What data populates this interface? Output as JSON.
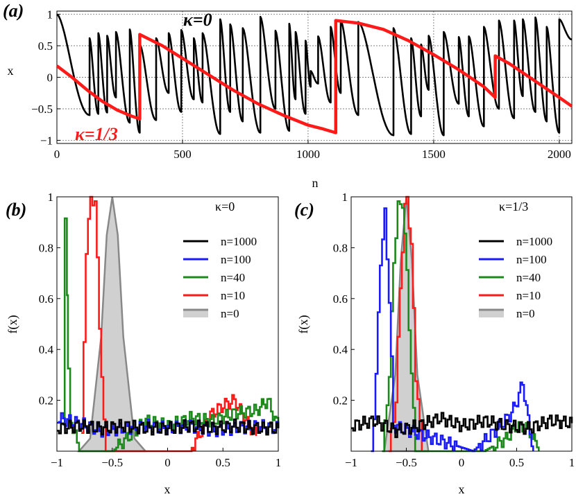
{
  "panels": {
    "a": {
      "label": "(a)",
      "xlabel": "n",
      "ylabel": "x",
      "xticks": [
        "0",
        "500",
        "1000",
        "1500",
        "2000"
      ],
      "yticks": [
        "1",
        "0.5",
        "0",
        "−0.5",
        "−1"
      ],
      "annotations": [
        "κ=0",
        "κ=1/3"
      ]
    },
    "b": {
      "label": "(b)",
      "xlabel": "x",
      "ylabel": "f(x)",
      "legend_title": "κ=0",
      "xticks": [
        "−1",
        "−0.5",
        "0",
        "0.5",
        "1"
      ],
      "yticks": [
        "1",
        "0.8",
        "0.6",
        "0.4",
        "0.2"
      ]
    },
    "c": {
      "label": "(c)",
      "xlabel": "x",
      "ylabel": "f(x)",
      "legend_title": "κ=1/3",
      "xticks": [
        "−1",
        "−0.5",
        "0",
        "0.5",
        "1"
      ],
      "yticks": [
        "1",
        "0.8",
        "0.6",
        "0.4",
        "0.2"
      ]
    }
  },
  "colors": {
    "n1000": "#000000",
    "n100": "#1a1aff",
    "n40": "#1b8a1b",
    "n10": "#ff1a1a",
    "n0": "#888888",
    "n0_fill": "#d0d0d0",
    "k13": "#ff1a1a",
    "k0": "#000000"
  },
  "chart_data": [
    {
      "type": "line",
      "panel": "a",
      "xlabel": "n",
      "ylabel": "x",
      "xlim": [
        0,
        2050
      ],
      "ylim": [
        -1.05,
        1.05
      ],
      "grid": true,
      "series": [
        {
          "name": "κ=0",
          "color": "#000000",
          "teeth": [
            [
              0,
              130,
              1.0,
              -0.6
            ],
            [
              130,
              165,
              0.62,
              -0.58
            ],
            [
              165,
              200,
              0.7,
              -0.56
            ],
            [
              200,
              235,
              0.66,
              -0.32
            ],
            [
              235,
              290,
              0.72,
              -0.72
            ],
            [
              290,
              330,
              0.76,
              -0.88
            ],
            [
              330,
              395,
              0.52,
              -0.68
            ],
            [
              395,
              445,
              0.62,
              -0.25
            ],
            [
              445,
              495,
              0.7,
              -0.55
            ],
            [
              495,
              545,
              0.75,
              -0.35
            ],
            [
              545,
              580,
              0.62,
              -0.4
            ],
            [
              580,
              650,
              0.7,
              -0.9
            ],
            [
              650,
              690,
              0.92,
              -0.55
            ],
            [
              690,
              740,
              0.84,
              -0.7
            ],
            [
              740,
              810,
              0.78,
              -0.88
            ],
            [
              810,
              870,
              0.96,
              -0.5
            ],
            [
              870,
              925,
              0.74,
              -0.85
            ],
            [
              925,
              950,
              0.85,
              -0.35
            ],
            [
              950,
              990,
              0.72,
              -0.58
            ],
            [
              990,
              1010,
              0.58,
              -0.15
            ],
            [
              1010,
              1040,
              0.1,
              -0.1
            ],
            [
              1040,
              1090,
              0.65,
              -0.4
            ],
            [
              1090,
              1130,
              0.8,
              -0.25
            ],
            [
              1130,
              1200,
              0.9,
              -0.6
            ],
            [
              1200,
              1340,
              0.88,
              -0.92
            ],
            [
              1340,
              1410,
              0.78,
              -0.9
            ],
            [
              1410,
              1450,
              0.62,
              -0.62
            ],
            [
              1450,
              1480,
              0.52,
              -0.2
            ],
            [
              1480,
              1540,
              0.66,
              -0.92
            ],
            [
              1540,
              1600,
              0.72,
              -0.42
            ],
            [
              1600,
              1640,
              0.64,
              -0.62
            ],
            [
              1640,
              1700,
              0.65,
              -0.78
            ],
            [
              1700,
              1760,
              0.8,
              -0.5
            ],
            [
              1760,
              1820,
              0.9,
              -0.65
            ],
            [
              1820,
              1855,
              0.9,
              -0.3
            ],
            [
              1855,
              1905,
              0.92,
              -0.55
            ],
            [
              1905,
              1950,
              0.95,
              -0.7
            ],
            [
              1950,
              2000,
              0.8,
              -0.88
            ],
            [
              2000,
              2050,
              0.92,
              0.6
            ]
          ]
        },
        {
          "name": "κ=1/3",
          "color": "#ff1a1a",
          "points": [
            [
              0,
              0.18
            ],
            [
              60,
              0.0
            ],
            [
              120,
              -0.2
            ],
            [
              180,
              -0.38
            ],
            [
              240,
              -0.52
            ],
            [
              300,
              -0.62
            ],
            [
              330,
              -0.66
            ],
            [
              330,
              0.68
            ],
            [
              420,
              0.5
            ],
            [
              500,
              0.3
            ],
            [
              600,
              0.05
            ],
            [
              700,
              -0.2
            ],
            [
              800,
              -0.42
            ],
            [
              900,
              -0.6
            ],
            [
              1000,
              -0.76
            ],
            [
              1060,
              -0.82
            ],
            [
              1110,
              -0.88
            ],
            [
              1110,
              0.9
            ],
            [
              1200,
              0.86
            ],
            [
              1300,
              0.76
            ],
            [
              1400,
              0.58
            ],
            [
              1500,
              0.36
            ],
            [
              1600,
              0.12
            ],
            [
              1700,
              -0.15
            ],
            [
              1745,
              -0.32
            ],
            [
              1745,
              0.34
            ],
            [
              1800,
              0.22
            ],
            [
              1900,
              -0.05
            ],
            [
              2000,
              -0.32
            ],
            [
              2050,
              -0.46
            ]
          ]
        }
      ]
    },
    {
      "type": "area",
      "panel": "b",
      "title": "κ=0",
      "xlabel": "x",
      "ylabel": "f(x)",
      "xlim": [
        -1,
        1
      ],
      "ylim": [
        0,
        1
      ],
      "legend": "top-right",
      "series": [
        {
          "name": "n=1000",
          "color": "#000000",
          "x": [
            -1.0,
            -0.8,
            -0.6,
            -0.4,
            -0.2,
            0.0,
            0.2,
            0.4,
            0.6,
            0.8,
            1.0
          ],
          "values": [
            0.09,
            0.1,
            0.09,
            0.1,
            0.09,
            0.09,
            0.1,
            0.09,
            0.1,
            0.09,
            0.09
          ]
        },
        {
          "name": "n=100",
          "color": "#1a1aff",
          "x": [
            -1.0,
            -0.8,
            -0.6,
            -0.4,
            -0.2,
            0.0,
            0.2,
            0.4,
            0.6,
            0.8,
            1.0
          ],
          "values": [
            0.13,
            0.11,
            0.08,
            0.09,
            0.1,
            0.09,
            0.1,
            0.08,
            0.09,
            0.1,
            0.09
          ]
        },
        {
          "name": "n=40",
          "color": "#1b8a1b",
          "x": [
            -0.95,
            -0.93,
            -0.91,
            -0.9,
            -0.88,
            -0.8,
            -0.5,
            -0.2,
            0.0,
            0.2,
            0.4,
            0.6,
            0.8,
            0.9,
            1.0
          ],
          "values": [
            0.1,
            0.94,
            0.6,
            0.3,
            0.12,
            0.0,
            0.0,
            0.12,
            0.1,
            0.13,
            0.12,
            0.15,
            0.16,
            0.2,
            0.09
          ]
        },
        {
          "name": "n=10",
          "color": "#ff1a1a",
          "x": [
            -0.78,
            -0.74,
            -0.7,
            -0.66,
            -0.62,
            -0.58,
            -0.56,
            0.2,
            0.3,
            0.4,
            0.5,
            0.6,
            0.7,
            0.8
          ],
          "values": [
            0.05,
            0.8,
            1.0,
            0.98,
            0.5,
            0.1,
            0.0,
            0.0,
            0.08,
            0.15,
            0.18,
            0.2,
            0.12,
            0.06
          ]
        },
        {
          "name": "n=0",
          "color": "#888888",
          "x": [
            -0.8,
            -0.7,
            -0.6,
            -0.55,
            -0.5,
            -0.45,
            -0.4,
            -0.3,
            -0.2
          ],
          "values": [
            0.0,
            0.05,
            0.45,
            0.85,
            1.0,
            0.85,
            0.45,
            0.05,
            0.0
          ]
        }
      ]
    },
    {
      "type": "area",
      "panel": "c",
      "title": "κ=1/3",
      "xlabel": "x",
      "ylabel": "f(x)",
      "xlim": [
        -1,
        1
      ],
      "ylim": [
        0,
        1
      ],
      "legend": "top-right",
      "series": [
        {
          "name": "n=1000",
          "color": "#000000",
          "x": [
            -1.0,
            -0.8,
            -0.6,
            -0.4,
            -0.2,
            0.0,
            0.2,
            0.4,
            0.6,
            0.8,
            1.0
          ],
          "values": [
            0.1,
            0.12,
            0.08,
            0.1,
            0.13,
            0.1,
            0.12,
            0.1,
            0.09,
            0.12,
            0.11
          ]
        },
        {
          "name": "n=100",
          "color": "#1a1aff",
          "x": [
            -0.82,
            -0.78,
            -0.74,
            -0.7,
            -0.66,
            -0.62,
            0.1,
            0.3,
            0.45,
            0.5,
            0.55,
            0.6,
            0.65
          ],
          "values": [
            0.0,
            0.3,
            0.75,
            0.93,
            0.6,
            0.1,
            0.0,
            0.08,
            0.15,
            0.2,
            0.27,
            0.12,
            0.0
          ]
        },
        {
          "name": "n=40",
          "color": "#1b8a1b",
          "x": [
            -0.72,
            -0.66,
            -0.62,
            -0.58,
            -0.54,
            -0.5,
            -0.46,
            -0.42,
            0.2,
            0.4,
            0.5,
            0.6,
            0.7
          ],
          "values": [
            0.0,
            0.3,
            0.75,
            0.96,
            0.98,
            0.7,
            0.3,
            0.0,
            0.0,
            0.05,
            0.1,
            0.09,
            0.0
          ]
        },
        {
          "name": "n=10",
          "color": "#ff1a1a",
          "x": [
            -0.66,
            -0.6,
            -0.56,
            -0.52,
            -0.5,
            -0.46,
            -0.42,
            -0.36
          ],
          "values": [
            0.0,
            0.2,
            0.65,
            0.95,
            1.0,
            0.8,
            0.3,
            0.0
          ]
        },
        {
          "name": "n=0",
          "color": "#888888",
          "x": [
            -0.7,
            -0.6,
            -0.55,
            -0.5,
            -0.45,
            -0.4,
            -0.3
          ],
          "values": [
            0.0,
            0.3,
            0.75,
            1.0,
            0.75,
            0.3,
            0.0
          ]
        }
      ]
    }
  ]
}
